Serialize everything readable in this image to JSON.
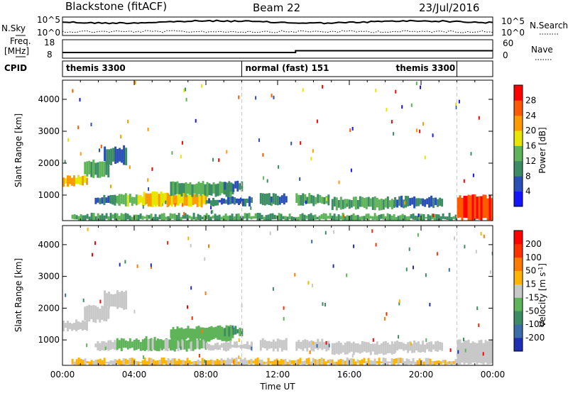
{
  "header": {
    "radar": "Blackstone (fitACF)",
    "beam": "Beam 22",
    "date": "23/Jul/2016"
  },
  "aux": {
    "left_top_label": "N.Sky",
    "left_top_ticks": [
      "10^5",
      "10^0"
    ],
    "right_top_label": "N.Search",
    "right_top_ticks": [
      "10^5",
      "10^0"
    ],
    "left_freq_label_1": "Freq.",
    "left_freq_label_2": "[MHz]",
    "left_freq_ticks": [
      "18",
      "8"
    ],
    "right_freq_label": "Nave",
    "right_freq_ticks": [
      "60",
      "0"
    ],
    "cpid_label": "CPID",
    "modes": [
      {
        "text": "themis 3300",
        "start_h": 0
      },
      {
        "text": "normal (fast) 151",
        "start_h": 10
      },
      {
        "text": "themis 3300",
        "start_h": 22
      }
    ],
    "mode_boundaries_h": [
      10,
      22
    ],
    "freq_step_h": 13
  },
  "chart_data": [
    {
      "type": "heatmap",
      "xlabel": "",
      "ylabel": "Slant Range [km]",
      "xlim": [
        0,
        24
      ],
      "ylim": [
        200,
        4600
      ],
      "yticks": [
        "1000",
        "2000",
        "3000",
        "4000"
      ],
      "colorbar": {
        "label": "Power [dB]",
        "ticks": [
          "4",
          "8",
          "12",
          "16",
          "20",
          "24",
          "28"
        ],
        "range": [
          0,
          32
        ],
        "colors": [
          "#1414ff",
          "#2a50b8",
          "#3c8c64",
          "#5fb45a",
          "#e6e600",
          "#ff9a00",
          "#ff5a00",
          "#ff0000"
        ]
      },
      "regions": [
        {
          "t0": 0.0,
          "t1": 1.4,
          "r0": 1320,
          "r1": 1580,
          "value": 20
        },
        {
          "t0": 1.2,
          "t1": 2.6,
          "r0": 1600,
          "r1": 2050,
          "value": 12
        },
        {
          "t0": 2.3,
          "t1": 3.6,
          "r0": 2000,
          "r1": 2500,
          "value": 8
        },
        {
          "t0": 1.8,
          "t1": 3.2,
          "r0": 700,
          "r1": 950,
          "value": 8
        },
        {
          "t0": 3.0,
          "t1": 6.5,
          "r0": 700,
          "r1": 1000,
          "value": 16
        },
        {
          "t0": 4.5,
          "t1": 8.0,
          "r0": 680,
          "r1": 1050,
          "value": 20
        },
        {
          "t0": 6.0,
          "t1": 9.5,
          "r0": 1000,
          "r1": 1400,
          "value": 12
        },
        {
          "t0": 9.0,
          "t1": 10.0,
          "r0": 1150,
          "r1": 1400,
          "value": 8
        },
        {
          "t0": 8.0,
          "t1": 10.5,
          "r0": 700,
          "r1": 900,
          "value": 8
        },
        {
          "t0": 11.0,
          "t1": 12.5,
          "r0": 700,
          "r1": 1000,
          "value": 8
        },
        {
          "t0": 13.0,
          "t1": 14.8,
          "r0": 700,
          "r1": 1000,
          "value": 12
        },
        {
          "t0": 15.0,
          "t1": 18.5,
          "r0": 580,
          "r1": 900,
          "value": 12
        },
        {
          "t0": 18.5,
          "t1": 21.2,
          "r0": 650,
          "r1": 920,
          "value": 8
        },
        {
          "t0": 0.5,
          "t1": 22.0,
          "r0": 200,
          "r1": 380,
          "value": 12
        },
        {
          "t0": 22.0,
          "t1": 24.0,
          "r0": 240,
          "r1": 960,
          "value": 28
        }
      ]
    },
    {
      "type": "heatmap",
      "xlabel": "Time UT",
      "ylabel": "Slant Range [km]",
      "xlim": [
        0,
        24
      ],
      "ylim": [
        200,
        4600
      ],
      "xticks": [
        "00:00",
        "04:00",
        "08:00",
        "12:00",
        "16:00",
        "20:00",
        "00:00"
      ],
      "yticks": [
        "1000",
        "2000",
        "3000",
        "4000"
      ],
      "colorbar": {
        "label": "Velocity [m s^-1]",
        "ticks": [
          "200",
          "100",
          "50",
          "15",
          "-15",
          "-50",
          "-100",
          "-200"
        ],
        "range": [
          -250,
          250
        ],
        "colors": [
          "#1d2fb5",
          "#3b6ea8",
          "#3c8c64",
          "#5fb45a",
          "#c8c8c8",
          "#ffb400",
          "#ff7a00",
          "#ff3000",
          "#ff0000"
        ]
      },
      "regions": [
        {
          "t0": 0.0,
          "t1": 1.4,
          "r0": 1320,
          "r1": 1580,
          "value": 0
        },
        {
          "t0": 1.2,
          "t1": 2.6,
          "r0": 1600,
          "r1": 2050,
          "value": 0
        },
        {
          "t0": 2.3,
          "t1": 3.6,
          "r0": 2000,
          "r1": 2500,
          "value": 0
        },
        {
          "t0": 1.8,
          "t1": 3.2,
          "r0": 700,
          "r1": 950,
          "value": 0
        },
        {
          "t0": 3.0,
          "t1": 6.5,
          "r0": 700,
          "r1": 1000,
          "value": -40
        },
        {
          "t0": 4.5,
          "t1": 8.0,
          "r0": 680,
          "r1": 1050,
          "value": -40
        },
        {
          "t0": 6.0,
          "t1": 9.5,
          "r0": 1000,
          "r1": 1400,
          "value": -60
        },
        {
          "t0": 9.0,
          "t1": 10.0,
          "r0": 1150,
          "r1": 1400,
          "value": -80
        },
        {
          "t0": 8.0,
          "t1": 10.5,
          "r0": 700,
          "r1": 900,
          "value": 0
        },
        {
          "t0": 11.0,
          "t1": 12.5,
          "r0": 700,
          "r1": 1000,
          "value": 0
        },
        {
          "t0": 13.0,
          "t1": 14.8,
          "r0": 700,
          "r1": 1000,
          "value": 0
        },
        {
          "t0": 15.0,
          "t1": 18.5,
          "r0": 580,
          "r1": 900,
          "value": 0
        },
        {
          "t0": 18.5,
          "t1": 21.2,
          "r0": 650,
          "r1": 920,
          "value": 0
        },
        {
          "t0": 0.5,
          "t1": 22.0,
          "r0": 200,
          "r1": 380,
          "value": 30
        },
        {
          "t0": 22.0,
          "t1": 24.0,
          "r0": 240,
          "r1": 960,
          "value": 0
        }
      ]
    }
  ]
}
